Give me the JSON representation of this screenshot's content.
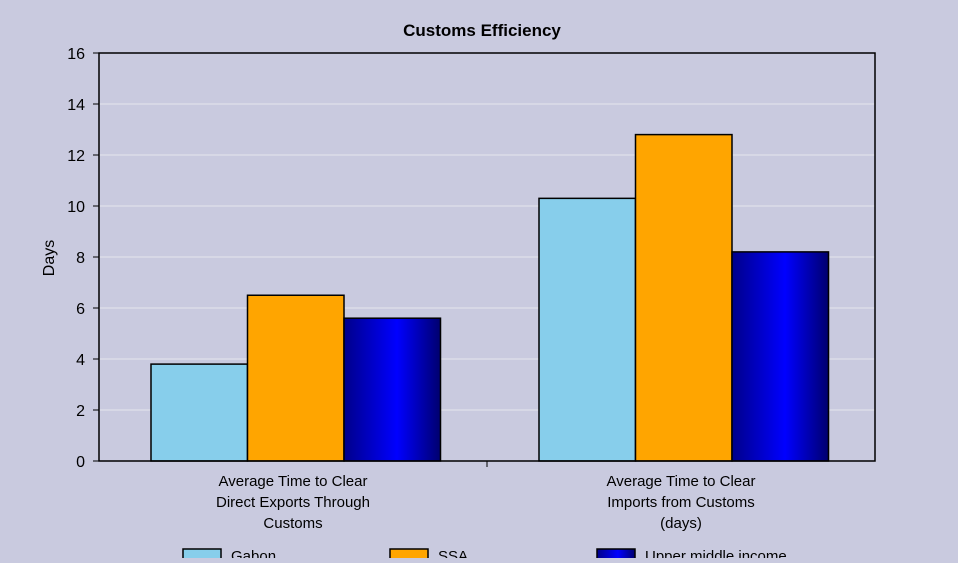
{
  "chart_data": {
    "type": "bar",
    "title": "Customs Efficiency",
    "xlabel": "",
    "ylabel": "Days",
    "ylim": [
      0,
      16
    ],
    "yticks": [
      0,
      2,
      4,
      6,
      8,
      10,
      12,
      14,
      16
    ],
    "grid": true,
    "legend_position": "bottom",
    "categories": [
      [
        "Average Time to Clear",
        "Direct Exports Through",
        "Customs"
      ],
      [
        "Average Time to Clear",
        "Imports from Customs",
        "(days)"
      ]
    ],
    "series": [
      {
        "name": "Gabon",
        "values": [
          3.8,
          10.3
        ],
        "color": "#87ceeb"
      },
      {
        "name": "SSA",
        "values": [
          6.5,
          12.8
        ],
        "color": "#ffa500"
      },
      {
        "name": "Upper middle income",
        "values": [
          5.6,
          8.2
        ],
        "color": "#0000cd"
      }
    ],
    "colors": {
      "background": "#c9cadf",
      "plot_background": "#c9cadf",
      "gridline": "#dcdce8",
      "axis": "#000000"
    }
  }
}
